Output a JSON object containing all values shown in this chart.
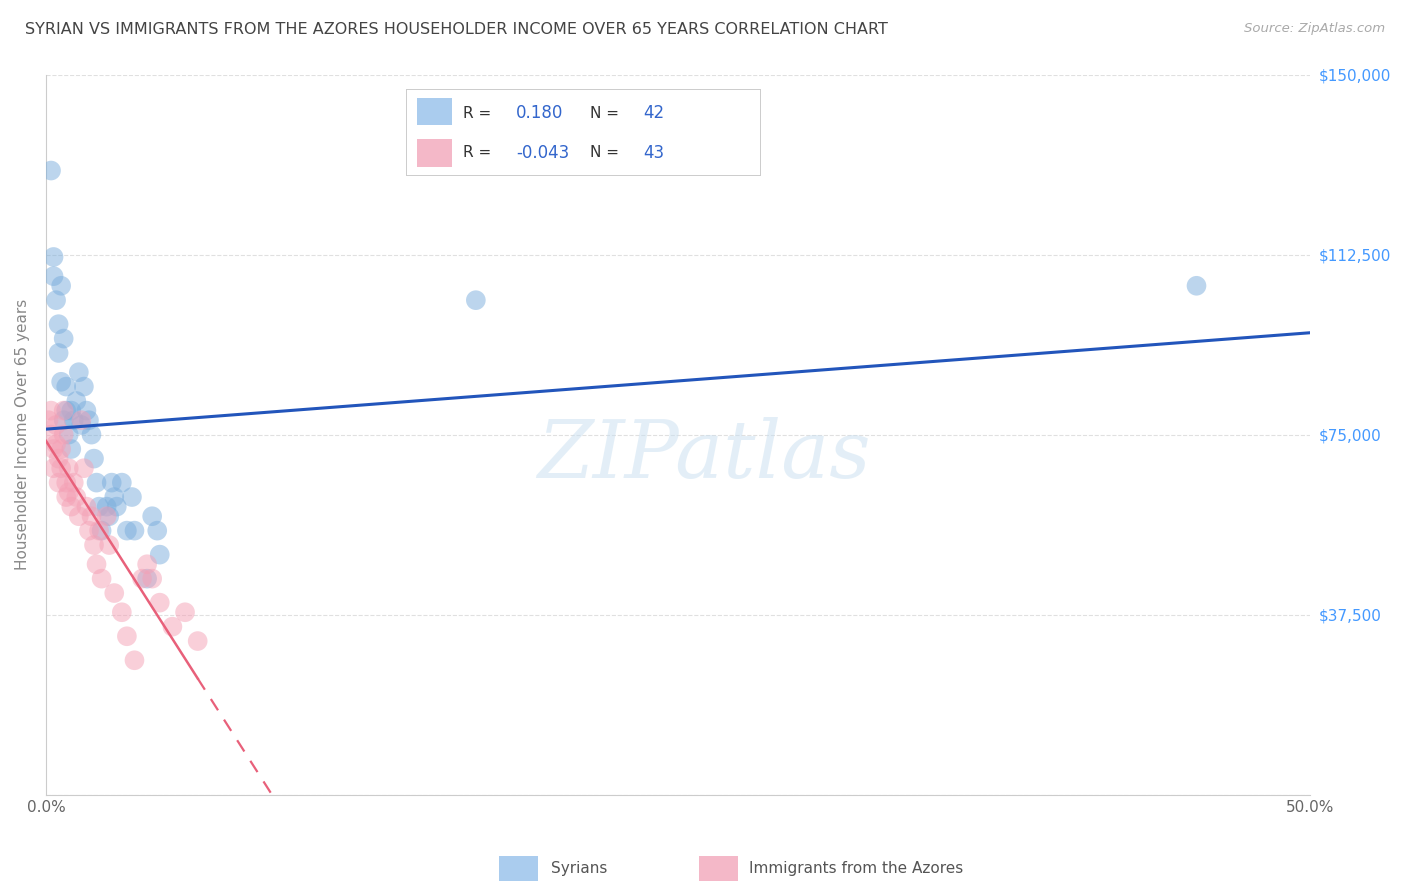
{
  "title": "SYRIAN VS IMMIGRANTS FROM THE AZORES HOUSEHOLDER INCOME OVER 65 YEARS CORRELATION CHART",
  "source": "Source: ZipAtlas.com",
  "ylabel": "Householder Income Over 65 years",
  "xlim": [
    0.0,
    0.5
  ],
  "ylim": [
    0,
    150000
  ],
  "ytick_vals": [
    0,
    37500,
    75000,
    112500,
    150000
  ],
  "ytick_labels": [
    "",
    "$37,500",
    "$75,000",
    "$112,500",
    "$150,000"
  ],
  "background_color": "#ffffff",
  "grid_color": "#e0e0e0",
  "watermark": "ZIPatlas",
  "blue_color": "#7aaddc",
  "pink_color": "#f4a0b5",
  "line_blue": "#2255bb",
  "line_pink": "#e8607a",
  "blue_R": "0.180",
  "blue_N": "42",
  "pink_R": "-0.043",
  "pink_N": "43",
  "syrians_x": [
    0.002,
    0.003,
    0.003,
    0.004,
    0.005,
    0.005,
    0.006,
    0.006,
    0.007,
    0.007,
    0.008,
    0.008,
    0.009,
    0.01,
    0.01,
    0.011,
    0.012,
    0.013,
    0.014,
    0.015,
    0.016,
    0.017,
    0.018,
    0.019,
    0.02,
    0.021,
    0.022,
    0.024,
    0.025,
    0.026,
    0.027,
    0.028,
    0.03,
    0.032,
    0.034,
    0.035,
    0.04,
    0.042,
    0.044,
    0.045,
    0.17,
    0.455
  ],
  "syrians_y": [
    130000,
    112000,
    108000,
    103000,
    98000,
    92000,
    86000,
    106000,
    95000,
    78000,
    85000,
    80000,
    75000,
    80000,
    72000,
    78000,
    82000,
    88000,
    77000,
    85000,
    80000,
    78000,
    75000,
    70000,
    65000,
    60000,
    55000,
    60000,
    58000,
    65000,
    62000,
    60000,
    65000,
    55000,
    62000,
    55000,
    45000,
    58000,
    55000,
    50000,
    103000,
    106000
  ],
  "azores_x": [
    0.001,
    0.002,
    0.002,
    0.003,
    0.003,
    0.004,
    0.004,
    0.005,
    0.005,
    0.006,
    0.006,
    0.007,
    0.007,
    0.008,
    0.008,
    0.009,
    0.009,
    0.01,
    0.011,
    0.012,
    0.013,
    0.014,
    0.015,
    0.016,
    0.017,
    0.018,
    0.019,
    0.02,
    0.021,
    0.022,
    0.024,
    0.025,
    0.027,
    0.03,
    0.032,
    0.035,
    0.038,
    0.04,
    0.042,
    0.045,
    0.05,
    0.055,
    0.06
  ],
  "azores_y": [
    78000,
    80000,
    75000,
    72000,
    68000,
    73000,
    77000,
    70000,
    65000,
    72000,
    68000,
    75000,
    80000,
    65000,
    62000,
    68000,
    63000,
    60000,
    65000,
    62000,
    58000,
    78000,
    68000,
    60000,
    55000,
    58000,
    52000,
    48000,
    55000,
    45000,
    58000,
    52000,
    42000,
    38000,
    33000,
    28000,
    45000,
    48000,
    45000,
    40000,
    35000,
    38000,
    32000
  ]
}
